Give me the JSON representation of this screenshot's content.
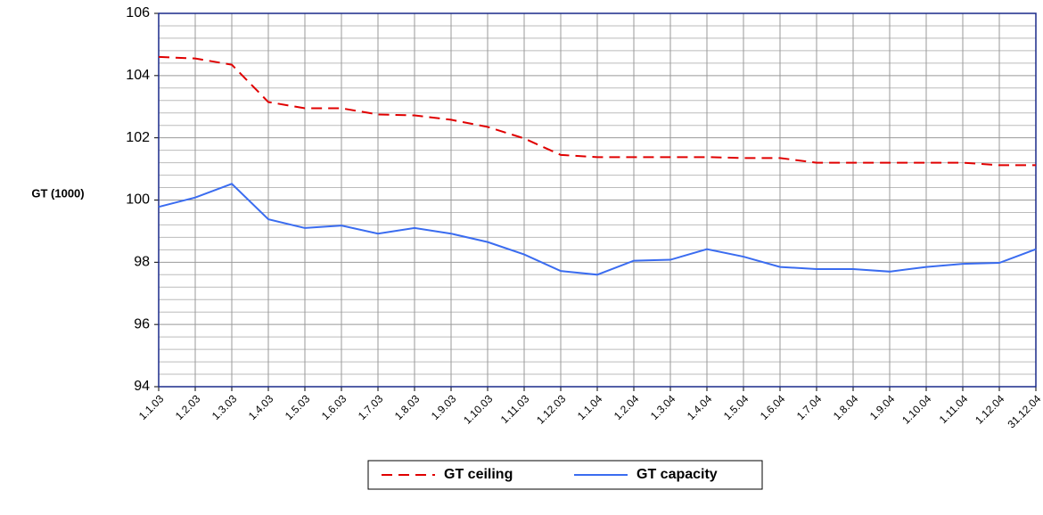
{
  "chart_data": {
    "type": "line",
    "y_label": "GT (1000)",
    "categories": [
      "1.1.03",
      "1.2.03",
      "1.3.03",
      "1.4.03",
      "1.5.03",
      "1.6.03",
      "1.7.03",
      "1.8.03",
      "1.9.03",
      "1.10.03",
      "1.11.03",
      "1.12.03",
      "1.1.04",
      "1.2.04",
      "1.3.04",
      "1.4.04",
      "1.5.04",
      "1.6.04",
      "1.7.04",
      "1.8.04",
      "1.9.04",
      "1.10.04",
      "1.11.04",
      "1.12.04",
      "31.12.04"
    ],
    "series": [
      {
        "name": "GT ceiling",
        "color": "#e00000",
        "dash": true,
        "values": [
          104.6,
          104.55,
          104.35,
          103.15,
          102.95,
          102.95,
          102.75,
          102.72,
          102.58,
          102.35,
          101.98,
          101.45,
          101.38,
          101.38,
          101.38,
          101.38,
          101.35,
          101.35,
          101.2,
          101.2,
          101.2,
          101.2,
          101.2,
          101.12,
          101.12
        ]
      },
      {
        "name": "GT capacity",
        "color": "#3a6cf0",
        "dash": false,
        "values": [
          99.78,
          100.08,
          100.52,
          99.38,
          99.1,
          99.18,
          98.92,
          99.1,
          98.92,
          98.65,
          98.25,
          97.72,
          97.6,
          98.05,
          98.08,
          98.42,
          98.18,
          97.85,
          97.78,
          97.78,
          97.7,
          97.85,
          97.95,
          97.98,
          98.42
        ]
      }
    ],
    "ylim": [
      94,
      106
    ],
    "yticks": [
      94,
      96,
      98,
      100,
      102,
      104,
      106
    ],
    "yminorticks": [
      94.4,
      94.8,
      95.2,
      95.6,
      96.4,
      96.8,
      97.2,
      97.6,
      98.4,
      98.8,
      99.2,
      99.6,
      100.4,
      100.8,
      101.2,
      101.6,
      102.4,
      102.8,
      103.2,
      103.6,
      104.4,
      104.8,
      105.2,
      105.6
    ],
    "grid": true
  }
}
